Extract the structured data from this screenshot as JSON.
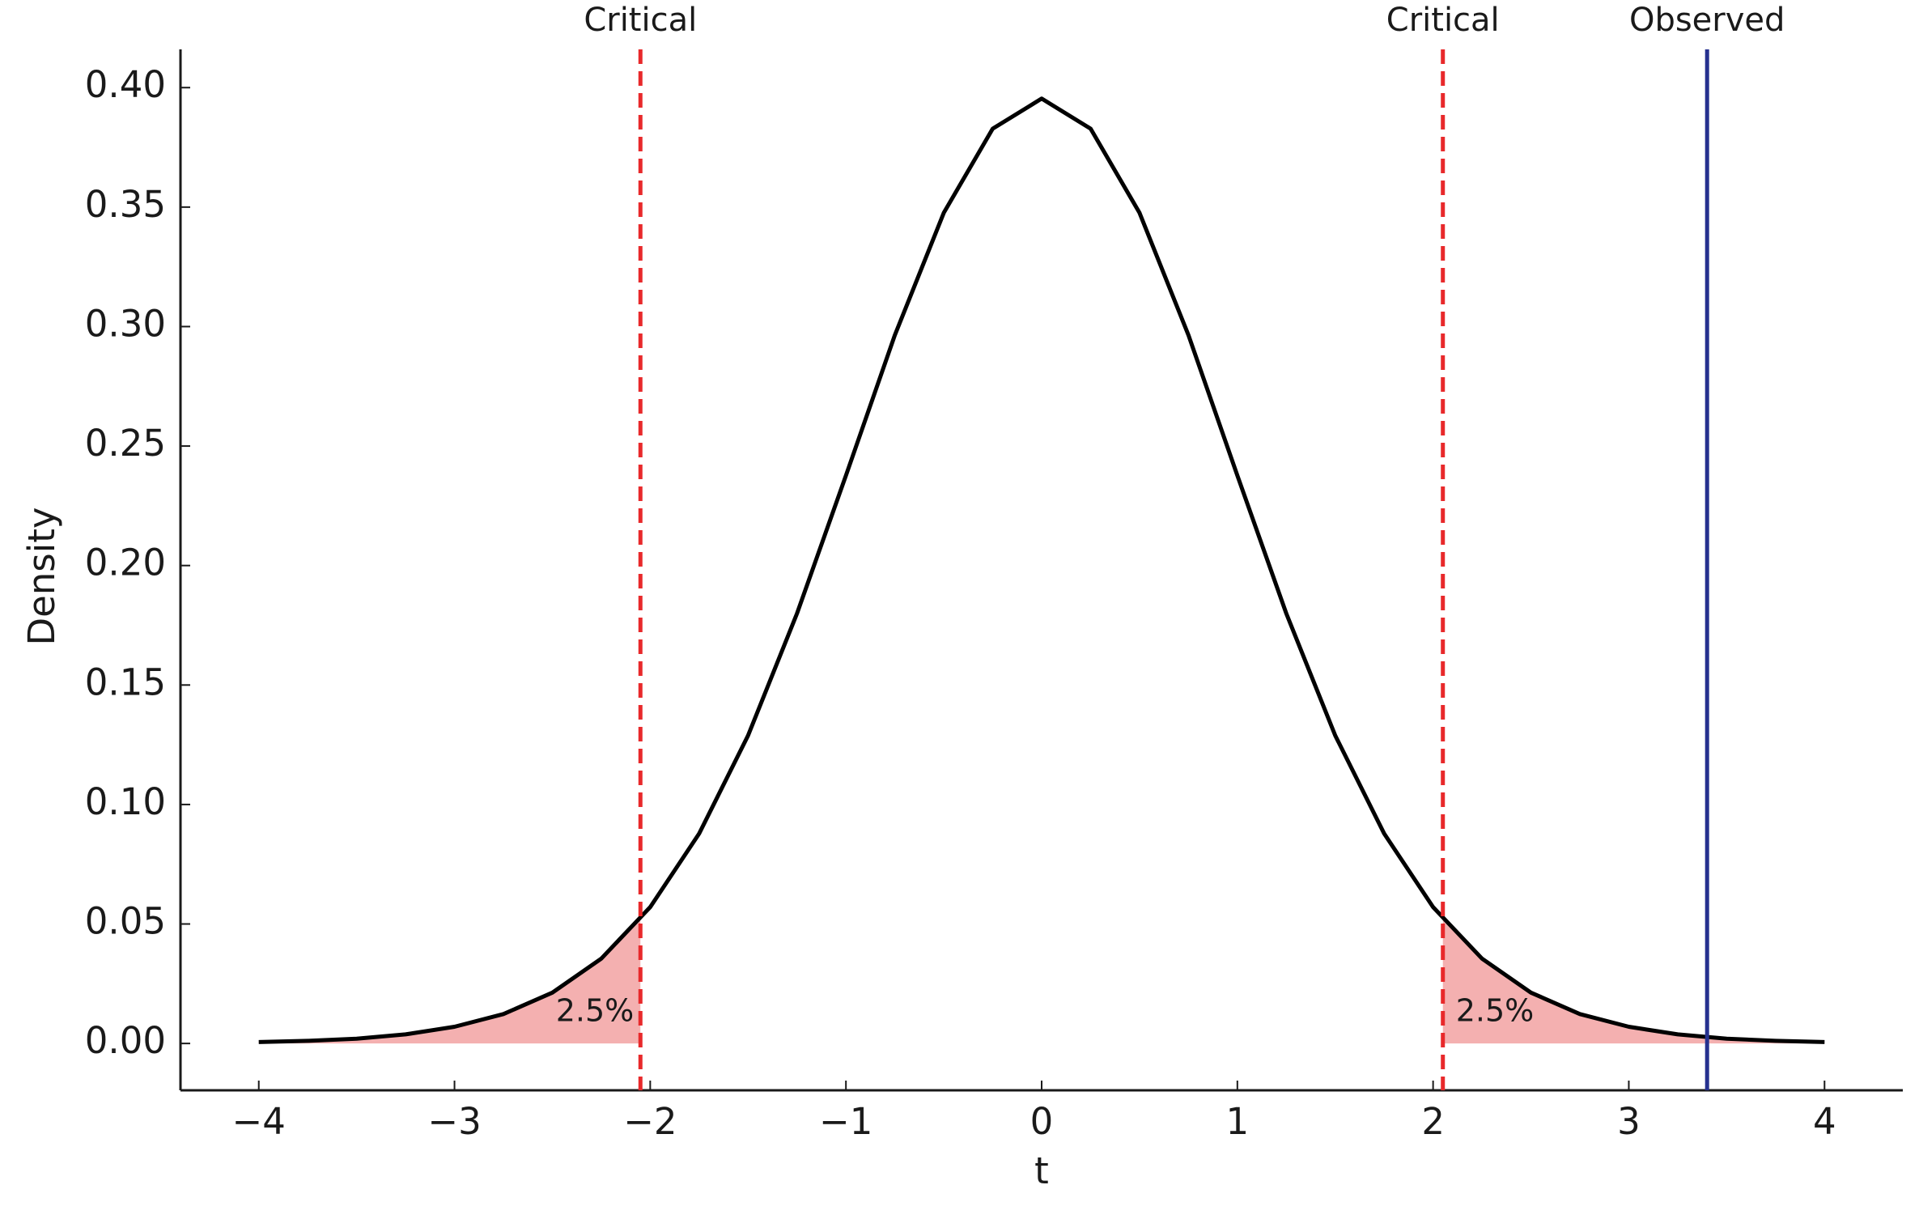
{
  "chart_data": {
    "type": "line",
    "x_label": "t",
    "y_label": "Density",
    "x": [
      -4,
      -3.75,
      -3.5,
      -3.25,
      -3,
      -2.75,
      -2.5,
      -2.25,
      -2,
      -1.75,
      -1.5,
      -1.25,
      -1,
      -0.75,
      -0.5,
      -0.25,
      0,
      0.25,
      0.5,
      0.75,
      1,
      1.25,
      1.5,
      1.75,
      2,
      2.25,
      2.5,
      2.75,
      3,
      3.25,
      3.5,
      3.75,
      4
    ],
    "values": [
      0.0006,
      0.0011,
      0.002,
      0.0038,
      0.007,
      0.0123,
      0.0213,
      0.0355,
      0.0571,
      0.0878,
      0.1289,
      0.1799,
      0.2377,
      0.2964,
      0.3476,
      0.3828,
      0.3954,
      0.3828,
      0.3476,
      0.2964,
      0.2377,
      0.1799,
      0.1289,
      0.0878,
      0.0571,
      0.0355,
      0.0213,
      0.0123,
      0.007,
      0.0038,
      0.002,
      0.0011,
      0.0006
    ],
    "color": "#000000",
    "fill_color": "#f4b0b0",
    "vlines": [
      {
        "x": -2.05,
        "label": "Critical",
        "color": "#e8292b",
        "style": "dashed",
        "tail_label": "2.5%",
        "side": "left"
      },
      {
        "x": 2.05,
        "label": "Critical",
        "color": "#e8292b",
        "style": "dashed",
        "tail_label": "2.5%",
        "side": "right"
      },
      {
        "x": 3.4,
        "label": "Observed",
        "color": "#26318f",
        "style": "solid"
      }
    ],
    "xlim": [
      -4.4,
      4.4
    ],
    "ylim": [
      -0.0196,
      0.416
    ],
    "xticks": [
      {
        "value": -4,
        "label": "−4"
      },
      {
        "value": -3,
        "label": "−3"
      },
      {
        "value": -2,
        "label": "−2"
      },
      {
        "value": -1,
        "label": "−1"
      },
      0,
      1,
      2,
      3,
      4
    ],
    "yticks": [
      {
        "value": 0,
        "label": "0.00"
      },
      {
        "value": 0.05,
        "label": "0.05"
      },
      {
        "value": 0.1,
        "label": "0.10"
      },
      {
        "value": 0.15,
        "label": "0.15"
      },
      {
        "value": 0.2,
        "label": "0.20"
      },
      {
        "value": 0.25,
        "label": "0.25"
      },
      {
        "value": 0.3,
        "label": "0.30"
      },
      {
        "value": 0.35,
        "label": "0.35"
      },
      {
        "value": 0.4,
        "label": "0.40"
      }
    ],
    "grid": false
  }
}
